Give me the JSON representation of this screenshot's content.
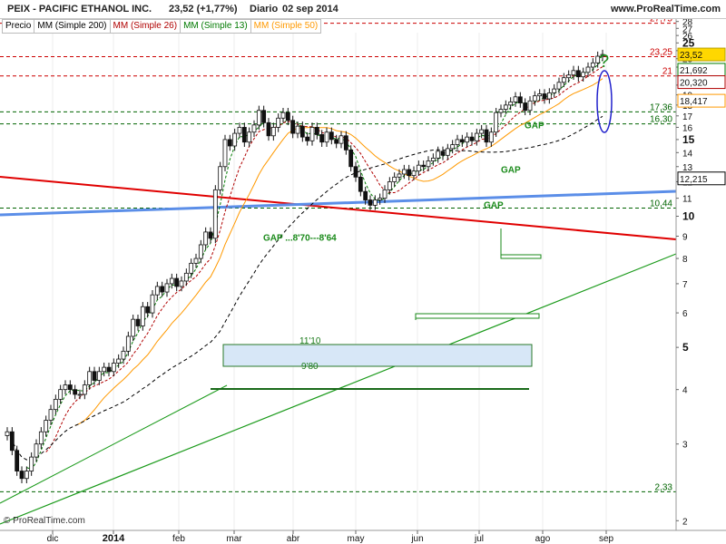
{
  "header": {
    "title": "PEIX - PACIFIC ETHANOL INC.",
    "quote": "23,52 (+1,77%)",
    "period": "Diario",
    "date": "02 sep 2014",
    "site": "www.ProRealTime.com"
  },
  "legend": [
    {
      "label": "Precio",
      "color": "#000000"
    },
    {
      "label": "MM (Simple 200)",
      "color": "#000000"
    },
    {
      "label": "MM (Simple 26)",
      "color": "#b00000"
    },
    {
      "label": "MM (Simple 13)",
      "color": "#007a00"
    },
    {
      "label": "MM (Simple 50)",
      "color": "#ff9900"
    }
  ],
  "copyright": "© ProRealTime.com",
  "chart_data": {
    "type": "line",
    "x_ticks": [
      "dic",
      "2014",
      "feb",
      "mar",
      "abr",
      "may",
      "jun",
      "jul",
      "ago",
      "sep"
    ],
    "y_ticks": [
      2,
      3,
      4,
      5,
      6,
      7,
      8,
      9,
      10,
      11,
      12,
      13,
      14,
      15,
      16,
      17,
      18,
      19,
      20,
      21,
      22,
      23,
      24,
      25,
      26,
      27,
      28
    ],
    "y_bold_ticks": [
      5,
      10,
      15,
      20,
      25
    ],
    "y_scale": "log",
    "ylim": [
      1.9,
      28.5
    ],
    "last_price": {
      "label": "23,52",
      "value": 23.52,
      "color": "#ffd700"
    },
    "ma_values": [
      {
        "name": "MM (Simple 13)",
        "label": "21,692",
        "value": 21.692,
        "color": "#007a00"
      },
      {
        "name": "MM (Simple 26)",
        "label": "20,320",
        "value": 20.32,
        "color": "#b00000"
      },
      {
        "name": "MM (Simple 50)",
        "label": "18,417",
        "value": 18.417,
        "color": "#ff9900"
      },
      {
        "name": "MM (Simple 200)",
        "label": "12,215",
        "value": 12.215,
        "color": "#000000"
      }
    ],
    "levels": [
      {
        "label": "27,75",
        "value": 27.75,
        "color": "#cc0000",
        "style": "dashed"
      },
      {
        "label": "23,25",
        "value": 23.25,
        "color": "#cc0000",
        "style": "dashed"
      },
      {
        "label": "21",
        "value": 21,
        "color": "#cc0000",
        "style": "dashed"
      },
      {
        "label": "17,36",
        "value": 17.36,
        "color": "#006400",
        "style": "dashed"
      },
      {
        "label": "16,30",
        "value": 16.3,
        "color": "#006400",
        "style": "dashed"
      },
      {
        "label": "10,44",
        "value": 10.44,
        "color": "#006400",
        "style": "dashed"
      },
      {
        "label": "2,33",
        "value": 2.33,
        "color": "#006400",
        "style": "dashed"
      }
    ],
    "gaps": [
      {
        "label": "GAP",
        "price": 15.7
      },
      {
        "label": "GAP",
        "price": 12.4
      },
      {
        "label": "GAP",
        "price": 10.3
      },
      {
        "label": "GAP ...8'70---8'64",
        "price": 8.67
      }
    ],
    "annotations": [
      "11'10",
      "9'80",
      "?"
    ],
    "series_close": [
      3.2,
      2.9,
      2.6,
      2.5,
      2.6,
      2.8,
      3.0,
      3.2,
      3.4,
      3.6,
      3.8,
      4.0,
      4.1,
      4.0,
      3.9,
      3.9,
      4.1,
      4.4,
      4.2,
      4.4,
      4.5,
      4.4,
      4.6,
      4.7,
      4.9,
      5.3,
      5.8,
      5.6,
      6.2,
      6.0,
      6.6,
      6.9,
      6.7,
      7.0,
      7.2,
      6.9,
      7.1,
      7.4,
      7.8,
      8.0,
      8.6,
      9.2,
      8.9,
      11.5,
      13.0,
      15.0,
      14.5,
      15.5,
      16.0,
      14.8,
      15.6,
      16.2,
      17.5,
      16.4,
      15.3,
      16.0,
      16.8,
      17.3,
      16.6,
      15.5,
      16.1,
      15.2,
      14.9,
      16.0,
      15.4,
      14.8,
      15.6,
      15.0,
      14.7,
      15.3,
      14.2,
      13.0,
      12.3,
      11.4,
      10.9,
      10.6,
      10.9,
      11.0,
      11.5,
      12.0,
      12.3,
      12.5,
      12.8,
      12.4,
      12.7,
      13.1,
      13.0,
      13.4,
      13.6,
      14.1,
      13.8,
      14.3,
      14.6,
      15.0,
      14.8,
      15.2,
      14.9,
      15.5,
      15.8,
      14.8,
      15.6,
      17.3,
      17.6,
      18.0,
      18.3,
      18.8,
      18.2,
      17.5,
      18.4,
      18.9,
      19.1,
      18.6,
      19.2,
      19.6,
      20.3,
      20.8,
      21.1,
      21.6,
      20.9,
      21.4,
      22.0,
      22.5,
      23.3,
      23.52
    ]
  }
}
